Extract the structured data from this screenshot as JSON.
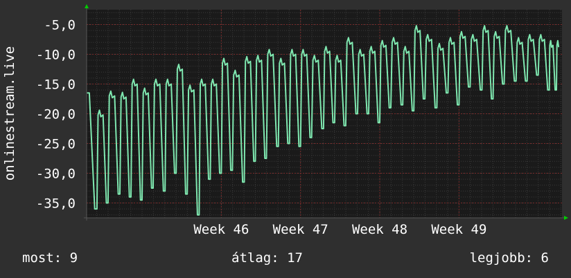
{
  "colors": {
    "background": "#2f2f2f",
    "plot_background": "#1a1a1a",
    "line": "#7fe8b0",
    "grid_major": "#7a2a2a",
    "grid_minor": "#3a3a3a",
    "axis": "#555555",
    "arrow": "#00cc00"
  },
  "stats": {
    "now": "most: 9",
    "avg": "átlag: 17",
    "best": "legjobb: 6"
  },
  "chart_data": {
    "type": "line",
    "title": "",
    "ylabel": "onlinestream.live",
    "xlabel": "",
    "y_tick_labels": [
      "-5,0",
      "-10,0",
      "-15,0",
      "-20,0",
      "-25,0",
      "-30,0",
      "-35,0"
    ],
    "y_ticks": [
      -5,
      -10,
      -15,
      -20,
      -25,
      -30,
      -35
    ],
    "ylim": [
      -37.5,
      -2.5
    ],
    "xlim": [
      -1.7,
      4.3
    ],
    "x_tick_labels": [
      "Week 46",
      "Week 47",
      "Week 48",
      "Week 49"
    ],
    "x_ticks": [
      0,
      1,
      2,
      3
    ],
    "grid": true,
    "series": [
      {
        "name": "",
        "style": "daily_cycle",
        "x": [
          -1.58,
          -1.44,
          -1.29,
          -1.15,
          -1.01,
          -0.87,
          -0.72,
          -0.58,
          -0.44,
          -0.29,
          -0.15,
          -0.01,
          0.13,
          0.28,
          0.42,
          0.56,
          0.71,
          0.85,
          0.99,
          1.13,
          1.28,
          1.42,
          1.56,
          1.71,
          1.85,
          1.99,
          2.13,
          2.28,
          2.42,
          2.56,
          2.71,
          2.85,
          2.99,
          3.13,
          3.28,
          3.42,
          3.56,
          3.71,
          3.85,
          3.99,
          4.13,
          4.22
        ],
        "peak": [
          -16.5,
          -20.2,
          -17.0,
          -17.2,
          -15.0,
          -16.5,
          -15.0,
          -15.0,
          -12.5,
          -16.0,
          -15.0,
          -15.0,
          -11.5,
          -13.5,
          -11.2,
          -11.0,
          -10.0,
          -11.5,
          -10.0,
          -10.0,
          -11.0,
          -9.5,
          -11.0,
          -8.0,
          -10.0,
          -9.5,
          -8.5,
          -8.0,
          -9.5,
          -6.0,
          -7.5,
          -9.0,
          -8.0,
          -7.0,
          -7.5,
          -6.0,
          -7.0,
          -6.0,
          -8.0,
          -7.5,
          -7.5,
          -8.5
        ],
        "trough": [
          -36.0,
          -35.0,
          -33.5,
          -34.0,
          -34.5,
          -32.5,
          -33.0,
          -30.0,
          -33.5,
          -37.0,
          -31.0,
          -30.0,
          -29.5,
          -31.5,
          -28.0,
          -27.5,
          -25.5,
          -25.0,
          -25.5,
          -24.0,
          -22.5,
          -21.5,
          -22.0,
          -20.0,
          -20.0,
          -21.5,
          -19.0,
          -18.5,
          -19.5,
          -17.5,
          -19.0,
          -16.5,
          -18.5,
          -15.5,
          -16.0,
          -17.5,
          -15.0,
          -14.5,
          -14.5,
          -13.5,
          -16.0,
          -16.0
        ]
      }
    ]
  }
}
